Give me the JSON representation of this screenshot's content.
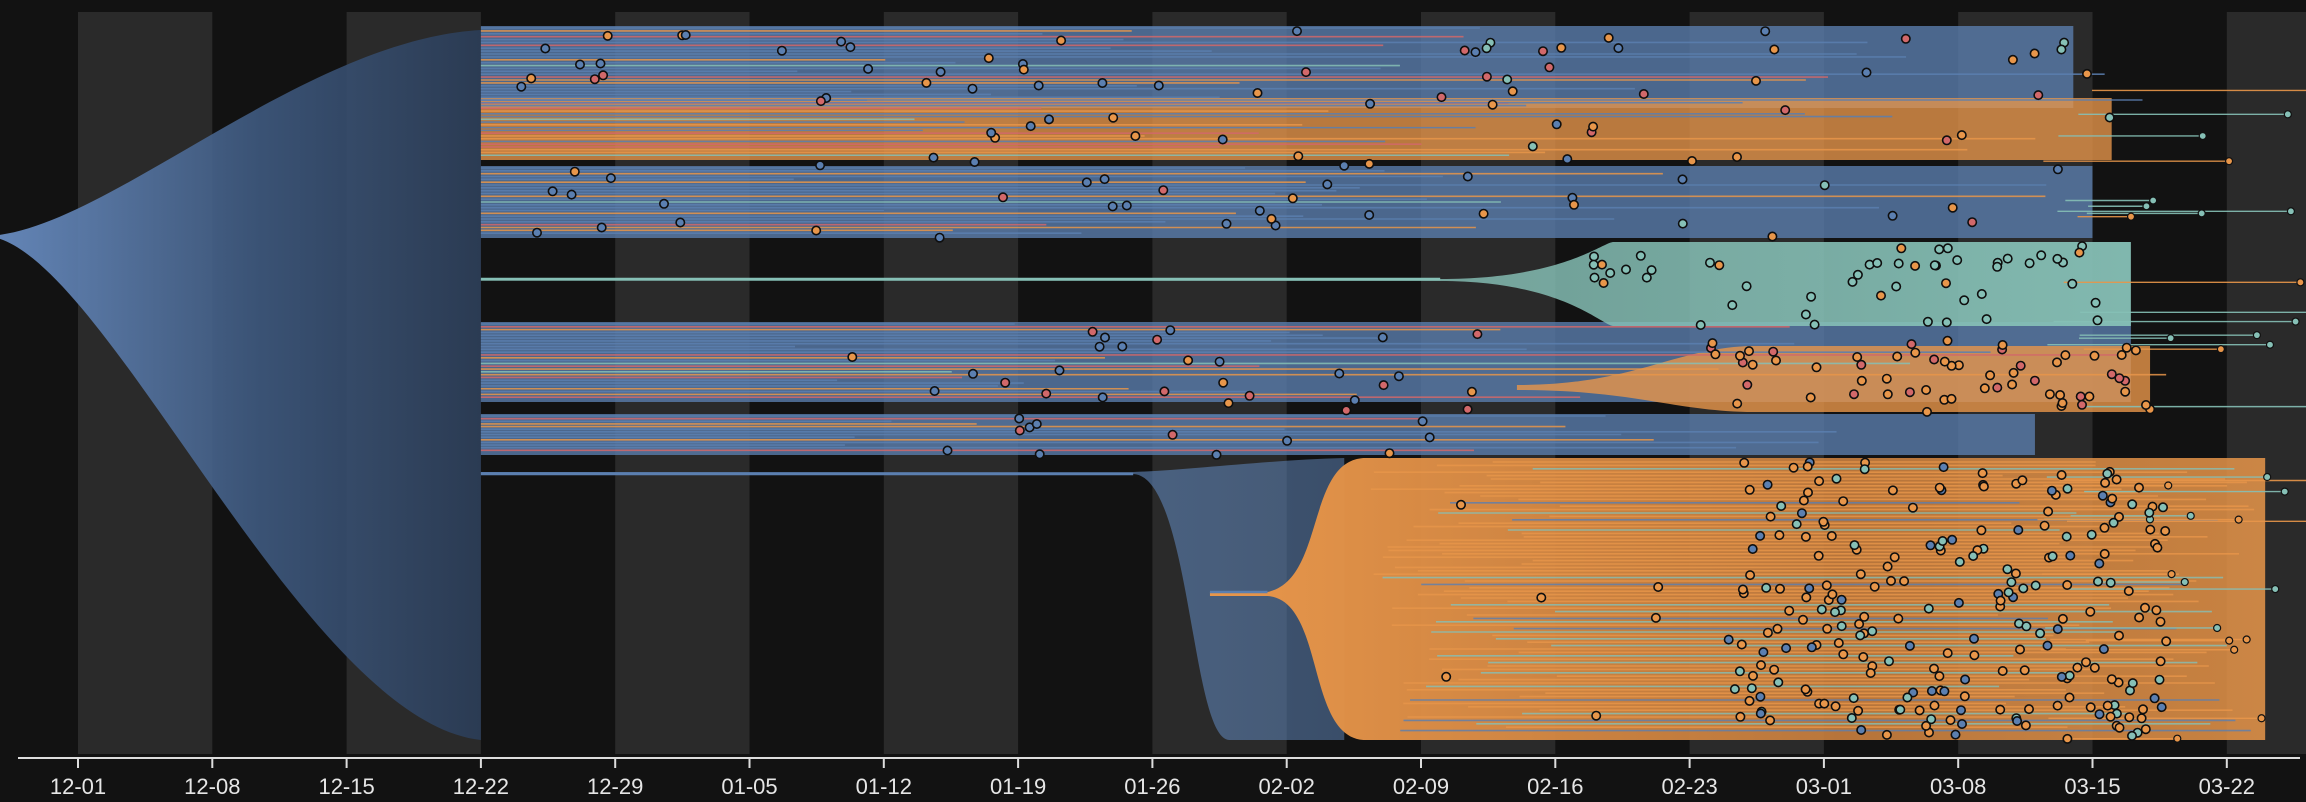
{
  "chart_data": {
    "type": "area",
    "xlabel": "",
    "ylabel": "",
    "xlim": [
      "11-28",
      "03-29"
    ],
    "tick_labels": [
      "12-01",
      "12-08",
      "12-15",
      "12-22",
      "12-29",
      "01-05",
      "01-12",
      "01-19",
      "01-26",
      "02-02",
      "02-09",
      "02-16",
      "02-23",
      "03-01",
      "03-08",
      "03-15",
      "03-22"
    ],
    "grid": "alternating vertical bands, one per week",
    "legend": "none",
    "colors": {
      "background": "#121212",
      "band": "#2a2a2a",
      "blue": "#5b7fb0",
      "orange": "#e8964a",
      "teal": "#86c0b6",
      "red": "#d2686a",
      "axis": "#dddddd"
    },
    "series": [
      {
        "color": "blue",
        "start": "11-29",
        "end": "12-22",
        "weight": 1.0
      },
      {
        "color": "blue",
        "start": "12-22",
        "end": "03-16",
        "weight": 0.23
      },
      {
        "color": "orange",
        "start": "12-22",
        "end": "03-17",
        "weight": 0.09
      },
      {
        "color": "blue",
        "start": "12-22",
        "end": "03-14",
        "weight": 0.12
      },
      {
        "color": "teal",
        "start": "02-10",
        "end": "03-17",
        "weight": 0.1
      },
      {
        "color": "orange",
        "start": "12-22",
        "end": "03-18",
        "weight": 0.1
      },
      {
        "color": "blue",
        "start": "12-22",
        "end": "02-22",
        "weight": 0.08
      },
      {
        "color": "blue",
        "start": "01-24",
        "end": "02-05",
        "weight": 0.34
      },
      {
        "color": "orange",
        "start": "02-05",
        "end": "03-24",
        "weight": 0.34
      }
    ]
  }
}
